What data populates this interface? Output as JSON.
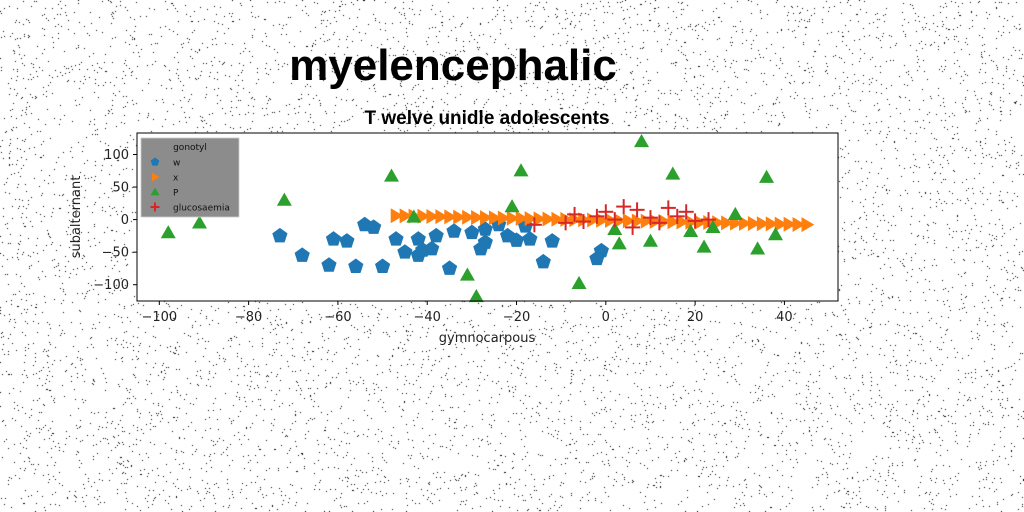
{
  "chart_data": {
    "type": "scatter",
    "suptitle": "myelencephalic",
    "title": "T welve unidle adolescents",
    "xlabel": "gymnocarpous",
    "ylabel": "subalternant",
    "xlim": [
      -105,
      52
    ],
    "ylim": [
      -125,
      133
    ],
    "xticks": [
      -100,
      -80,
      -60,
      -40,
      -20,
      0,
      20,
      40
    ],
    "yticks": [
      -100,
      -50,
      0,
      50,
      100
    ],
    "grid": false,
    "legend": {
      "title": "gonotyl",
      "position": "top-left"
    },
    "series": [
      {
        "name": "w",
        "marker": "pentagon",
        "color": "#1f77b4",
        "points": [
          [
            -73,
            -25
          ],
          [
            -68,
            -55
          ],
          [
            -62,
            -70
          ],
          [
            -61,
            -30
          ],
          [
            -58,
            -33
          ],
          [
            -56,
            -72
          ],
          [
            -54,
            -8
          ],
          [
            -52,
            -12
          ],
          [
            -50,
            -72
          ],
          [
            -47,
            -30
          ],
          [
            -45,
            -50
          ],
          [
            -42,
            -30
          ],
          [
            -42,
            -55
          ],
          [
            -41,
            -47
          ],
          [
            -39,
            -45
          ],
          [
            -38,
            -25
          ],
          [
            -35,
            -75
          ],
          [
            -34,
            -18
          ],
          [
            -30,
            -20
          ],
          [
            -28,
            -45
          ],
          [
            -27,
            -35
          ],
          [
            -27,
            -15
          ],
          [
            -24,
            -8
          ],
          [
            -22,
            -25
          ],
          [
            -20,
            -32
          ],
          [
            -18,
            -10
          ],
          [
            -17,
            -30
          ],
          [
            -14,
            -65
          ],
          [
            -12,
            -33
          ],
          [
            -2,
            -60
          ],
          [
            -1,
            -48
          ]
        ]
      },
      {
        "name": "x",
        "marker": "triangle-right",
        "color": "#ff7f0e",
        "points": [
          [
            -47,
            6
          ],
          [
            -45,
            5.7
          ],
          [
            -43,
            5.4
          ],
          [
            -41,
            5.1
          ],
          [
            -39,
            4.8
          ],
          [
            -37,
            4.5
          ],
          [
            -35,
            4.2
          ],
          [
            -33,
            3.9
          ],
          [
            -31,
            3.6
          ],
          [
            -29,
            3.3
          ],
          [
            -27,
            3.0
          ],
          [
            -25,
            2.7
          ],
          [
            -23,
            2.4
          ],
          [
            -21,
            2.1
          ],
          [
            -19,
            1.8
          ],
          [
            -17,
            1.5
          ],
          [
            -15,
            1.2
          ],
          [
            -13,
            0.9
          ],
          [
            -11,
            0.6
          ],
          [
            -9,
            0.3
          ],
          [
            -7,
            0.0
          ],
          [
            -5,
            -0.3
          ],
          [
            -3,
            -0.6
          ],
          [
            -1,
            -0.9
          ],
          [
            1,
            -1.2
          ],
          [
            3,
            -1.5
          ],
          [
            5,
            -1.8
          ],
          [
            7,
            -2.1
          ],
          [
            9,
            -2.4
          ],
          [
            11,
            -2.7
          ],
          [
            13,
            -3.0
          ],
          [
            15,
            -3.3
          ],
          [
            17,
            -3.6
          ],
          [
            19,
            -3.9
          ],
          [
            21,
            -4.2
          ],
          [
            23,
            -4.5
          ],
          [
            25,
            -4.8
          ],
          [
            27,
            -5.1
          ],
          [
            29,
            -5.4
          ],
          [
            31,
            -5.7
          ],
          [
            33,
            -6.0
          ],
          [
            35,
            -6.3
          ],
          [
            37,
            -6.6
          ],
          [
            39,
            -6.9
          ],
          [
            41,
            -7.2
          ],
          [
            43,
            -7.5
          ],
          [
            45,
            -7.8
          ]
        ]
      },
      {
        "name": "P",
        "marker": "triangle-up",
        "color": "#2ca02c",
        "points": [
          [
            -98,
            -20
          ],
          [
            -91,
            -5
          ],
          [
            -72,
            30
          ],
          [
            -48,
            67
          ],
          [
            -43,
            4
          ],
          [
            -31,
            -85
          ],
          [
            -29,
            -118
          ],
          [
            -21,
            20
          ],
          [
            -19,
            75
          ],
          [
            -6,
            -98
          ],
          [
            2,
            -15
          ],
          [
            3,
            -37
          ],
          [
            8,
            120
          ],
          [
            10,
            -33
          ],
          [
            15,
            70
          ],
          [
            19,
            -18
          ],
          [
            22,
            -42
          ],
          [
            24,
            -12
          ],
          [
            29,
            8
          ],
          [
            34,
            -45
          ],
          [
            36,
            65
          ],
          [
            38,
            -23
          ]
        ]
      },
      {
        "name": "glucosaemia",
        "marker": "plus",
        "color": "#d62728",
        "points": [
          [
            -16,
            -8
          ],
          [
            -9,
            -5
          ],
          [
            -7,
            8
          ],
          [
            -5,
            -3
          ],
          [
            -2,
            5
          ],
          [
            0,
            12
          ],
          [
            2,
            0
          ],
          [
            4,
            20
          ],
          [
            6,
            -12
          ],
          [
            7,
            15
          ],
          [
            10,
            3
          ],
          [
            12,
            -5
          ],
          [
            14,
            18
          ],
          [
            16,
            5
          ],
          [
            18,
            12
          ],
          [
            20,
            -2
          ],
          [
            23,
            0
          ]
        ]
      }
    ]
  }
}
